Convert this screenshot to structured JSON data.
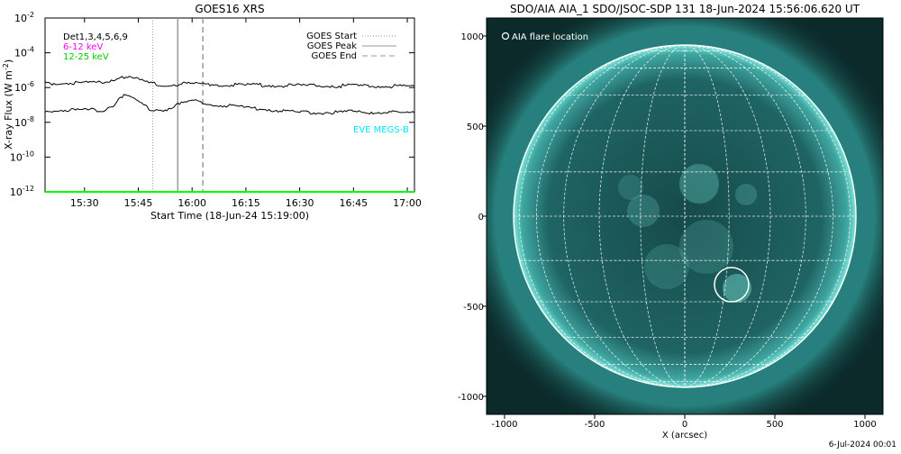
{
  "chart_data": [
    {
      "type": "line",
      "title": "GOES16 XRS",
      "xlabel": "Start Time (18-Jun-24 15:19:00)",
      "ylabel": "X-ray Flux (W m",
      "ylabel_exp": "-2",
      "ylabel_close": ")",
      "y_scale": "log",
      "xlim": [
        "15:19",
        "17:02"
      ],
      "ylim": [
        1e-12,
        0.01
      ],
      "x_ticks": [
        "15:30",
        "15:45",
        "16:00",
        "16:15",
        "16:30",
        "16:45",
        "17:00"
      ],
      "y_ticks": [
        {
          "base": "10",
          "exp": "-2",
          "value": 0.01
        },
        {
          "base": "10",
          "exp": "-4",
          "value": 0.0001
        },
        {
          "base": "10",
          "exp": "-6",
          "value": 1e-06
        },
        {
          "base": "10",
          "exp": "-8",
          "value": 1e-08
        },
        {
          "base": "10",
          "exp": "-10",
          "value": 1e-10
        },
        {
          "base": "10",
          "exp": "-12",
          "value": 1e-12
        }
      ],
      "series": [
        {
          "color": "#000000",
          "x": [
            "15:19",
            "15:35",
            "15:38",
            "15:40",
            "15:42",
            "15:45",
            "15:48",
            "15:52",
            "15:56",
            "16:00",
            "16:05",
            "16:15",
            "16:30",
            "16:45",
            "17:02"
          ],
          "values": [
            1.8e-06,
            1.9e-06,
            3e-06,
            4.5e-06,
            4.2e-06,
            2.8e-06,
            1.8e-06,
            1.4e-06,
            1.6e-06,
            1.7e-06,
            1.5e-06,
            1.4e-06,
            1.3e-06,
            1.25e-06,
            1.2e-06
          ]
        },
        {
          "color": "#000000",
          "x": [
            "15:19",
            "15:35",
            "15:38",
            "15:40",
            "15:42",
            "15:45",
            "15:48",
            "15:52",
            "15:56",
            "16:00",
            "16:05",
            "16:15",
            "16:20",
            "16:30",
            "16:45",
            "17:02"
          ],
          "values": [
            5e-08,
            5e-08,
            1e-07,
            3e-07,
            3.3e-07,
            1.6e-07,
            6e-08,
            5e-08,
            1e-07,
            1.8e-07,
            1.1e-07,
            7e-08,
            6e-08,
            3.5e-08,
            4e-08,
            3.5e-08
          ]
        },
        {
          "color": "#00e5ff",
          "x": [
            "15:19",
            "17:02"
          ],
          "values": [
            1e-12,
            1e-12
          ]
        },
        {
          "color": "#00ff00",
          "x": [
            "15:19",
            "17:02"
          ],
          "values": [
            1e-12,
            1e-12
          ]
        }
      ],
      "legend_left": [
        {
          "text": "Det1,3,4,5,6,9",
          "color": "#000000"
        },
        {
          "text": "6-12 keV",
          "color": "#ff00ff"
        },
        {
          "text": "12-25 keV",
          "color": "#00cc00"
        }
      ],
      "legend_right": [
        {
          "text": "GOES Start",
          "style": "dotted"
        },
        {
          "text": "GOES Peak",
          "style": "solid"
        },
        {
          "text": "GOES End",
          "style": "dashed"
        }
      ],
      "markers": {
        "start": "15:49",
        "peak": "15:56",
        "end": "16:03"
      },
      "annotation": {
        "text": "EVE MEGS-B",
        "color": "#00e5ff"
      }
    },
    {
      "type": "image",
      "title": "SDO/AIA AIA_1 SDO/JSOC-SDP 131 18-Jun-2024 15:56:06.620 UT",
      "xlabel": "X (arcsec)",
      "xlim": [
        -1100,
        1100
      ],
      "ylim": [
        -1100,
        1100
      ],
      "x_ticks": [
        -1000,
        -500,
        0,
        500,
        1000
      ],
      "y_ticks": [
        1000,
        500,
        0,
        -500,
        -1000
      ],
      "legend": "AIA flare location",
      "solar_radius_arcsec": 950,
      "flare_location": {
        "x": 260,
        "y": -380
      },
      "grid": true,
      "disk_color": "#1a5454",
      "limb_color": "#9ff5e8"
    }
  ],
  "footer": {
    "timestamp": "6-Jul-2024 00:01"
  }
}
